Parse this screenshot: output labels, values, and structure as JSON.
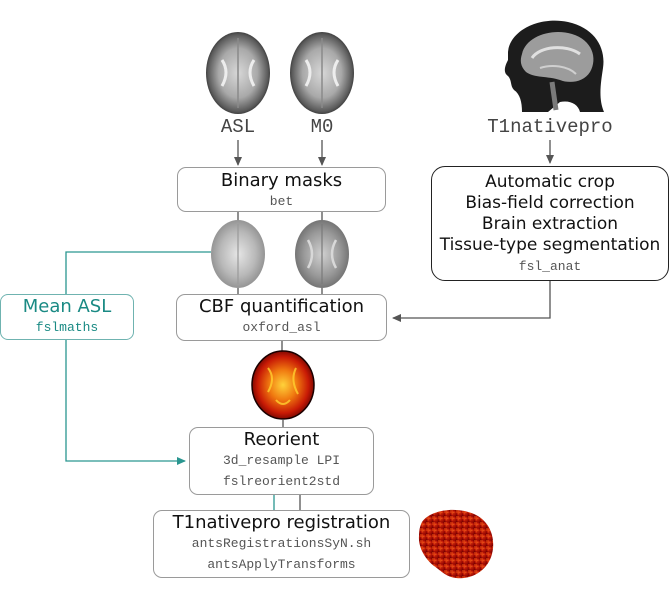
{
  "inputs": {
    "asl": "ASL",
    "m0": "M0",
    "t1": "T1nativepro"
  },
  "boxes": {
    "binary_masks": {
      "title": "Binary masks",
      "cmd": "bet"
    },
    "anat": {
      "lines": [
        "Automatic crop",
        "Bias-field correction",
        "Brain extraction",
        "Tissue-type segmentation"
      ],
      "cmd": "fsl_anat"
    },
    "mean_asl": {
      "title": "Mean ASL",
      "cmd": "fslmaths"
    },
    "cbf": {
      "title": "CBF quantification",
      "cmd": "oxford_asl"
    },
    "reorient": {
      "title": "Reorient",
      "cmds": [
        "3d_resample LPI",
        "fslreorient2std"
      ]
    },
    "registration": {
      "title": "T1nativepro registration",
      "cmds": [
        "antsRegistrationsSyN.sh",
        "antsApplyTransforms"
      ]
    }
  },
  "colors": {
    "arrow": "#555555",
    "teal": "#2a9690",
    "box_border": "#9a9a9a"
  },
  "images": [
    "asl-brain-image",
    "m0-brain-image",
    "t1-sagittal-image",
    "masked-asl-image",
    "masked-m0-image",
    "cbf-map-image",
    "registered-cbf-image"
  ]
}
